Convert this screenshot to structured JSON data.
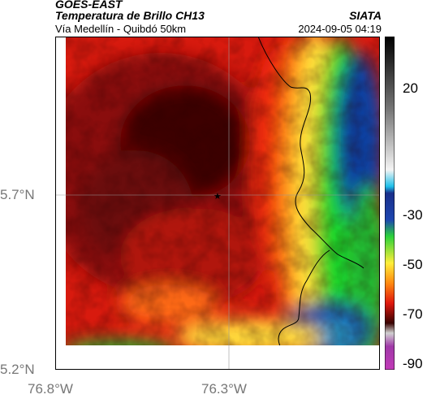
{
  "header": {
    "satellite": "GOES-EAST",
    "product": "Temperatura de Brillo CH13",
    "route": "Vía Medellín - Quibdó 50km",
    "source": "SIATA",
    "datetime": "2024-09-05 04:19"
  },
  "axes": {
    "y_ticks": [
      {
        "label": "5.7°N",
        "value": 5.7
      },
      {
        "label": "5.2°N",
        "value": 5.2
      }
    ],
    "x_ticks": [
      {
        "label": "76.8°W",
        "value": -76.8
      },
      {
        "label": "76.3°W",
        "value": -76.3
      }
    ]
  },
  "colorbar": {
    "tick_labels": [
      "20",
      "-30",
      "-50",
      "-70",
      "-90"
    ],
    "tick_values": [
      20,
      -30,
      -50,
      -70,
      -90
    ],
    "range": [
      -95,
      55
    ]
  },
  "map": {
    "field": "brightness temperature (°C)",
    "marker": "star"
  }
}
